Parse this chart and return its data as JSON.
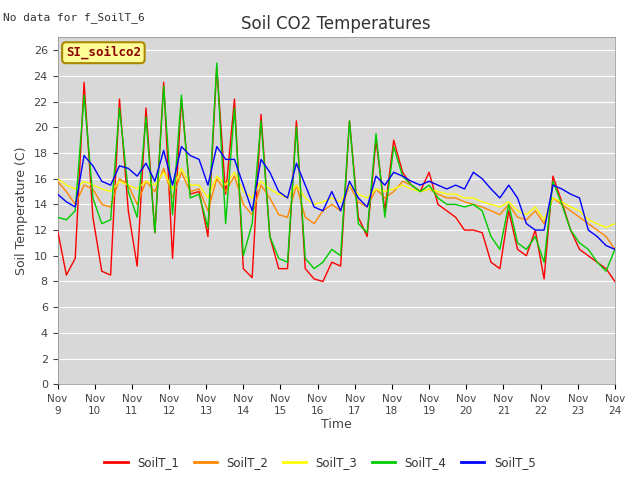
{
  "title": "Soil CO2 Temperatures",
  "ylabel": "Soil Temperature (C)",
  "xlabel": "Time",
  "no_data_label": "No data for f_SoilT_6",
  "site_label": "SI_soilco2",
  "ylim": [
    0,
    27
  ],
  "yticks": [
    0,
    2,
    4,
    6,
    8,
    10,
    12,
    14,
    16,
    18,
    20,
    22,
    24,
    26
  ],
  "xtick_labels": [
    "Nov 9",
    "Nov 10",
    "Nov 11",
    "Nov 12",
    "Nov 13",
    "Nov 14",
    "Nov 15",
    "Nov 16",
    "Nov 17",
    "Nov 18",
    "Nov 19",
    "Nov 20",
    "Nov 21",
    "Nov 22",
    "Nov 23",
    "Nov 24"
  ],
  "series_colors": {
    "SoilT_1": "#ff0000",
    "SoilT_2": "#ff8800",
    "SoilT_3": "#ffff00",
    "SoilT_4": "#00cc00",
    "SoilT_5": "#0000ff"
  },
  "fig_bg": "#ffffff",
  "plot_bg": "#d8d8d8",
  "grid_color": "#ffffff",
  "SoilT_1": [
    12.0,
    8.5,
    9.8,
    23.5,
    13.0,
    8.8,
    8.5,
    22.2,
    13.5,
    9.2,
    21.5,
    11.8,
    23.5,
    9.8,
    22.2,
    14.8,
    15.0,
    11.5,
    24.7,
    14.8,
    22.2,
    9.0,
    8.3,
    21.0,
    11.5,
    9.0,
    9.0,
    20.5,
    9.0,
    8.2,
    8.0,
    9.5,
    9.2,
    20.5,
    13.0,
    11.5,
    19.0,
    13.5,
    19.0,
    16.5,
    15.5,
    15.0,
    16.5,
    14.0,
    13.5,
    13.0,
    12.0,
    12.0,
    11.8,
    9.5,
    9.0,
    13.5,
    10.5,
    10.0,
    12.0,
    8.2,
    16.2,
    14.2,
    12.0,
    10.5,
    10.0,
    9.5,
    9.0,
    8.0
  ],
  "SoilT_2": [
    15.8,
    15.0,
    14.0,
    15.5,
    15.2,
    14.0,
    13.8,
    16.0,
    15.5,
    14.0,
    15.8,
    15.0,
    16.8,
    14.5,
    16.5,
    15.0,
    15.2,
    13.5,
    16.0,
    15.0,
    16.2,
    14.0,
    13.2,
    15.5,
    14.5,
    13.2,
    13.0,
    15.5,
    13.0,
    12.5,
    13.5,
    14.0,
    13.5,
    15.5,
    14.2,
    13.8,
    15.2,
    14.5,
    15.0,
    15.8,
    15.5,
    15.0,
    15.2,
    14.8,
    14.5,
    14.5,
    14.2,
    14.0,
    13.8,
    13.5,
    13.2,
    14.0,
    13.0,
    12.8,
    13.5,
    12.5,
    14.5,
    14.0,
    13.5,
    13.0,
    12.5,
    12.0,
    11.5,
    10.5
  ],
  "SoilT_3": [
    16.0,
    15.5,
    15.2,
    15.8,
    15.5,
    15.2,
    15.0,
    15.8,
    15.5,
    15.2,
    15.8,
    15.5,
    16.5,
    15.2,
    16.8,
    15.5,
    15.5,
    14.5,
    16.2,
    15.5,
    16.5,
    15.0,
    14.5,
    15.8,
    15.2,
    14.8,
    14.5,
    15.5,
    14.5,
    14.0,
    14.2,
    14.5,
    14.2,
    15.5,
    14.8,
    14.5,
    15.2,
    15.0,
    15.2,
    15.5,
    15.2,
    15.0,
    15.2,
    15.0,
    14.8,
    14.8,
    14.5,
    14.5,
    14.2,
    14.0,
    13.8,
    14.2,
    13.5,
    13.2,
    13.8,
    12.8,
    14.5,
    14.2,
    13.8,
    13.5,
    12.8,
    12.5,
    12.2,
    12.5
  ],
  "SoilT_4": [
    13.0,
    12.8,
    13.5,
    22.5,
    14.5,
    12.5,
    12.8,
    21.5,
    15.0,
    13.0,
    20.8,
    11.8,
    23.2,
    13.2,
    22.5,
    14.5,
    14.8,
    12.2,
    25.0,
    12.5,
    21.5,
    10.0,
    12.5,
    20.5,
    11.5,
    9.8,
    9.5,
    20.0,
    9.8,
    9.0,
    9.5,
    10.5,
    10.0,
    20.5,
    12.5,
    11.8,
    19.5,
    13.0,
    18.5,
    16.2,
    15.5,
    15.0,
    15.5,
    14.5,
    14.0,
    14.0,
    13.8,
    14.0,
    13.5,
    11.5,
    10.5,
    14.0,
    11.0,
    10.5,
    11.5,
    9.5,
    15.8,
    14.0,
    12.0,
    11.0,
    10.5,
    9.5,
    8.8,
    10.5
  ],
  "SoilT_5": [
    14.8,
    14.2,
    13.8,
    17.8,
    17.0,
    15.8,
    15.5,
    17.0,
    16.8,
    16.2,
    17.2,
    15.8,
    18.2,
    15.5,
    18.5,
    17.8,
    17.5,
    15.5,
    18.5,
    17.5,
    17.5,
    15.5,
    13.5,
    17.5,
    16.5,
    15.0,
    14.5,
    17.2,
    15.5,
    13.8,
    13.5,
    15.0,
    13.5,
    15.8,
    14.5,
    13.8,
    16.2,
    15.5,
    16.5,
    16.2,
    15.8,
    15.5,
    15.8,
    15.5,
    15.2,
    15.5,
    15.2,
    16.5,
    16.0,
    15.2,
    14.5,
    15.5,
    14.5,
    12.5,
    12.0,
    12.0,
    15.5,
    15.2,
    14.8,
    14.5,
    12.0,
    11.5,
    10.8,
    10.5
  ]
}
